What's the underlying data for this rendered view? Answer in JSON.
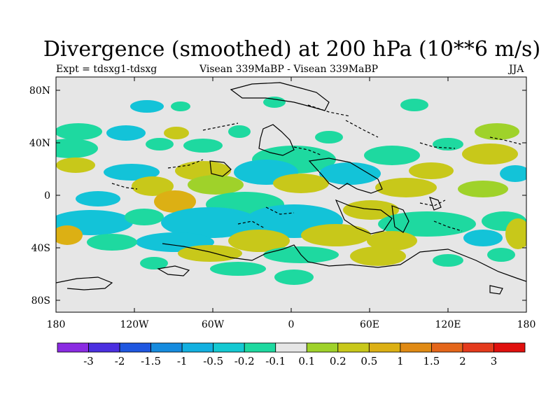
{
  "header": {
    "title": "Divergence (smoothed) at 200 hPa (10**6 m/s)",
    "experiment": "Expt = tdsxg1-tdsxg",
    "subtitle": "Visean 339MaBP - Visean 339MaBP",
    "season": "JJA"
  },
  "axes": {
    "x_ticks": [
      "180",
      "120W",
      "60W",
      "0",
      "60E",
      "120E",
      "180"
    ],
    "y_ticks": [
      "80N",
      "40N",
      "0",
      "40S",
      "80S"
    ]
  },
  "colorbar": {
    "colors": [
      "#8a2be2",
      "#4b2fe0",
      "#1f57e0",
      "#168bde",
      "#13b0e0",
      "#14c9d2",
      "#1ed9a0",
      "#e6e6e6",
      "#9fd22a",
      "#c8c81a",
      "#dcb014",
      "#e08a14",
      "#e4661a",
      "#e43a1c",
      "#e0100e"
    ],
    "labels": [
      "-3",
      "-2",
      "-1.5",
      "-1",
      "-0.5",
      "-0.2",
      "-0.1",
      "0.1",
      "0.2",
      "0.5",
      "1",
      "1.5",
      "2",
      "3"
    ]
  },
  "palette": {
    "background": "#e6e6e6",
    "cyan": "#13c3d8",
    "teal": "#1ed9a0",
    "blue": "#168bde",
    "yellowgreen": "#c8c81a",
    "green": "#9fd22a",
    "orange": "#dcb014",
    "coast": "#000000"
  }
}
